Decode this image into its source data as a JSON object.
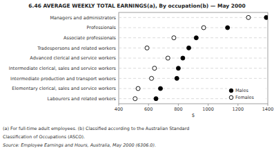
{
  "chart_data": {
    "type": "dot",
    "title": "6.46  AVERAGE WEEKLY TOTAL EARNINGS(a), By occupation(b) — May 2000",
    "categories": [
      "Managers and administrators",
      "Professionals",
      "Associate professionals",
      "Tradespersons and related workers",
      "Advanced clerical and service workers",
      "Intermediate clerical, sales and service workers",
      "Intermediate production and transport workers",
      "Elementary clerical, sales and service workers",
      "Labourers and related workers"
    ],
    "series": [
      {
        "name": "Males",
        "color": "#000000",
        "values": [
          1390,
          1130,
          920,
          870,
          830,
          800,
          790,
          680,
          650
        ]
      },
      {
        "name": "Females",
        "color": "#ffffff",
        "values": [
          1270,
          970,
          770,
          590,
          730,
          640,
          620,
          530,
          510
        ]
      }
    ],
    "xlabel": "$",
    "xlim": [
      400,
      1400
    ],
    "xticks": [
      400,
      600,
      800,
      1000,
      1200,
      1400
    ],
    "orientation": "horizontal",
    "grid": true,
    "legend": "lower right",
    "annotations": [
      "(a) For full-time adult employees. (b) Classified according to the Australian Standard",
      "Classification of Occupations (ASCO).",
      "Source:  Employee Earnings and Hours, Australia, May 2000 (6306.0)."
    ]
  }
}
